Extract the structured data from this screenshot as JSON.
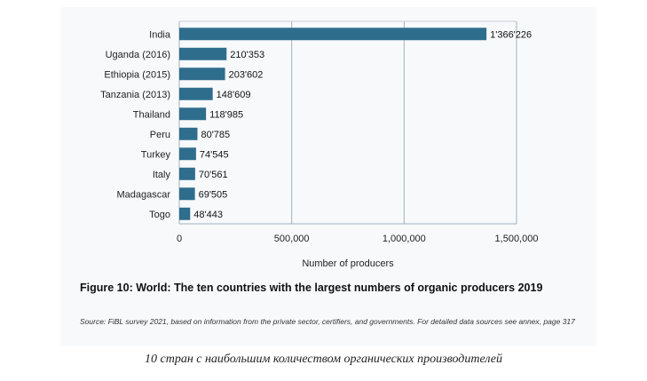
{
  "chart_data": {
    "type": "bar",
    "orientation": "horizontal",
    "categories": [
      "India",
      "Uganda (2016)",
      "Ethiopia (2015)",
      "Tanzania (2013)",
      "Thailand",
      "Peru",
      "Turkey",
      "Italy",
      "Madagascar",
      "Togo"
    ],
    "values": [
      1366226,
      210353,
      203602,
      148609,
      118985,
      80785,
      74545,
      70561,
      69505,
      48443
    ],
    "value_labels": [
      "1'366'226",
      "210'353",
      "203'602",
      "148'609",
      "118'985",
      "80'785",
      "74'545",
      "70'561",
      "69'505",
      "48'443"
    ],
    "xlabel": "Number of producers",
    "xlim": [
      0,
      1500000
    ],
    "xticks": [
      0,
      500000,
      1000000,
      1500000
    ],
    "xtick_labels": [
      "0",
      "500,000",
      "1,000,000",
      "1,500,000"
    ],
    "grid": "vertical",
    "bar_color": "#2f6d8c"
  },
  "figure": {
    "title": "Figure 10: World: The ten countries with the largest numbers of organic producers 2019",
    "source": "Source: FiBL survey 2021, based on information from the private sector, certifiers, and governments. For detailed data sources see annex, page 317"
  },
  "caption": "10 стран с наибольшим количеством органических производителей"
}
